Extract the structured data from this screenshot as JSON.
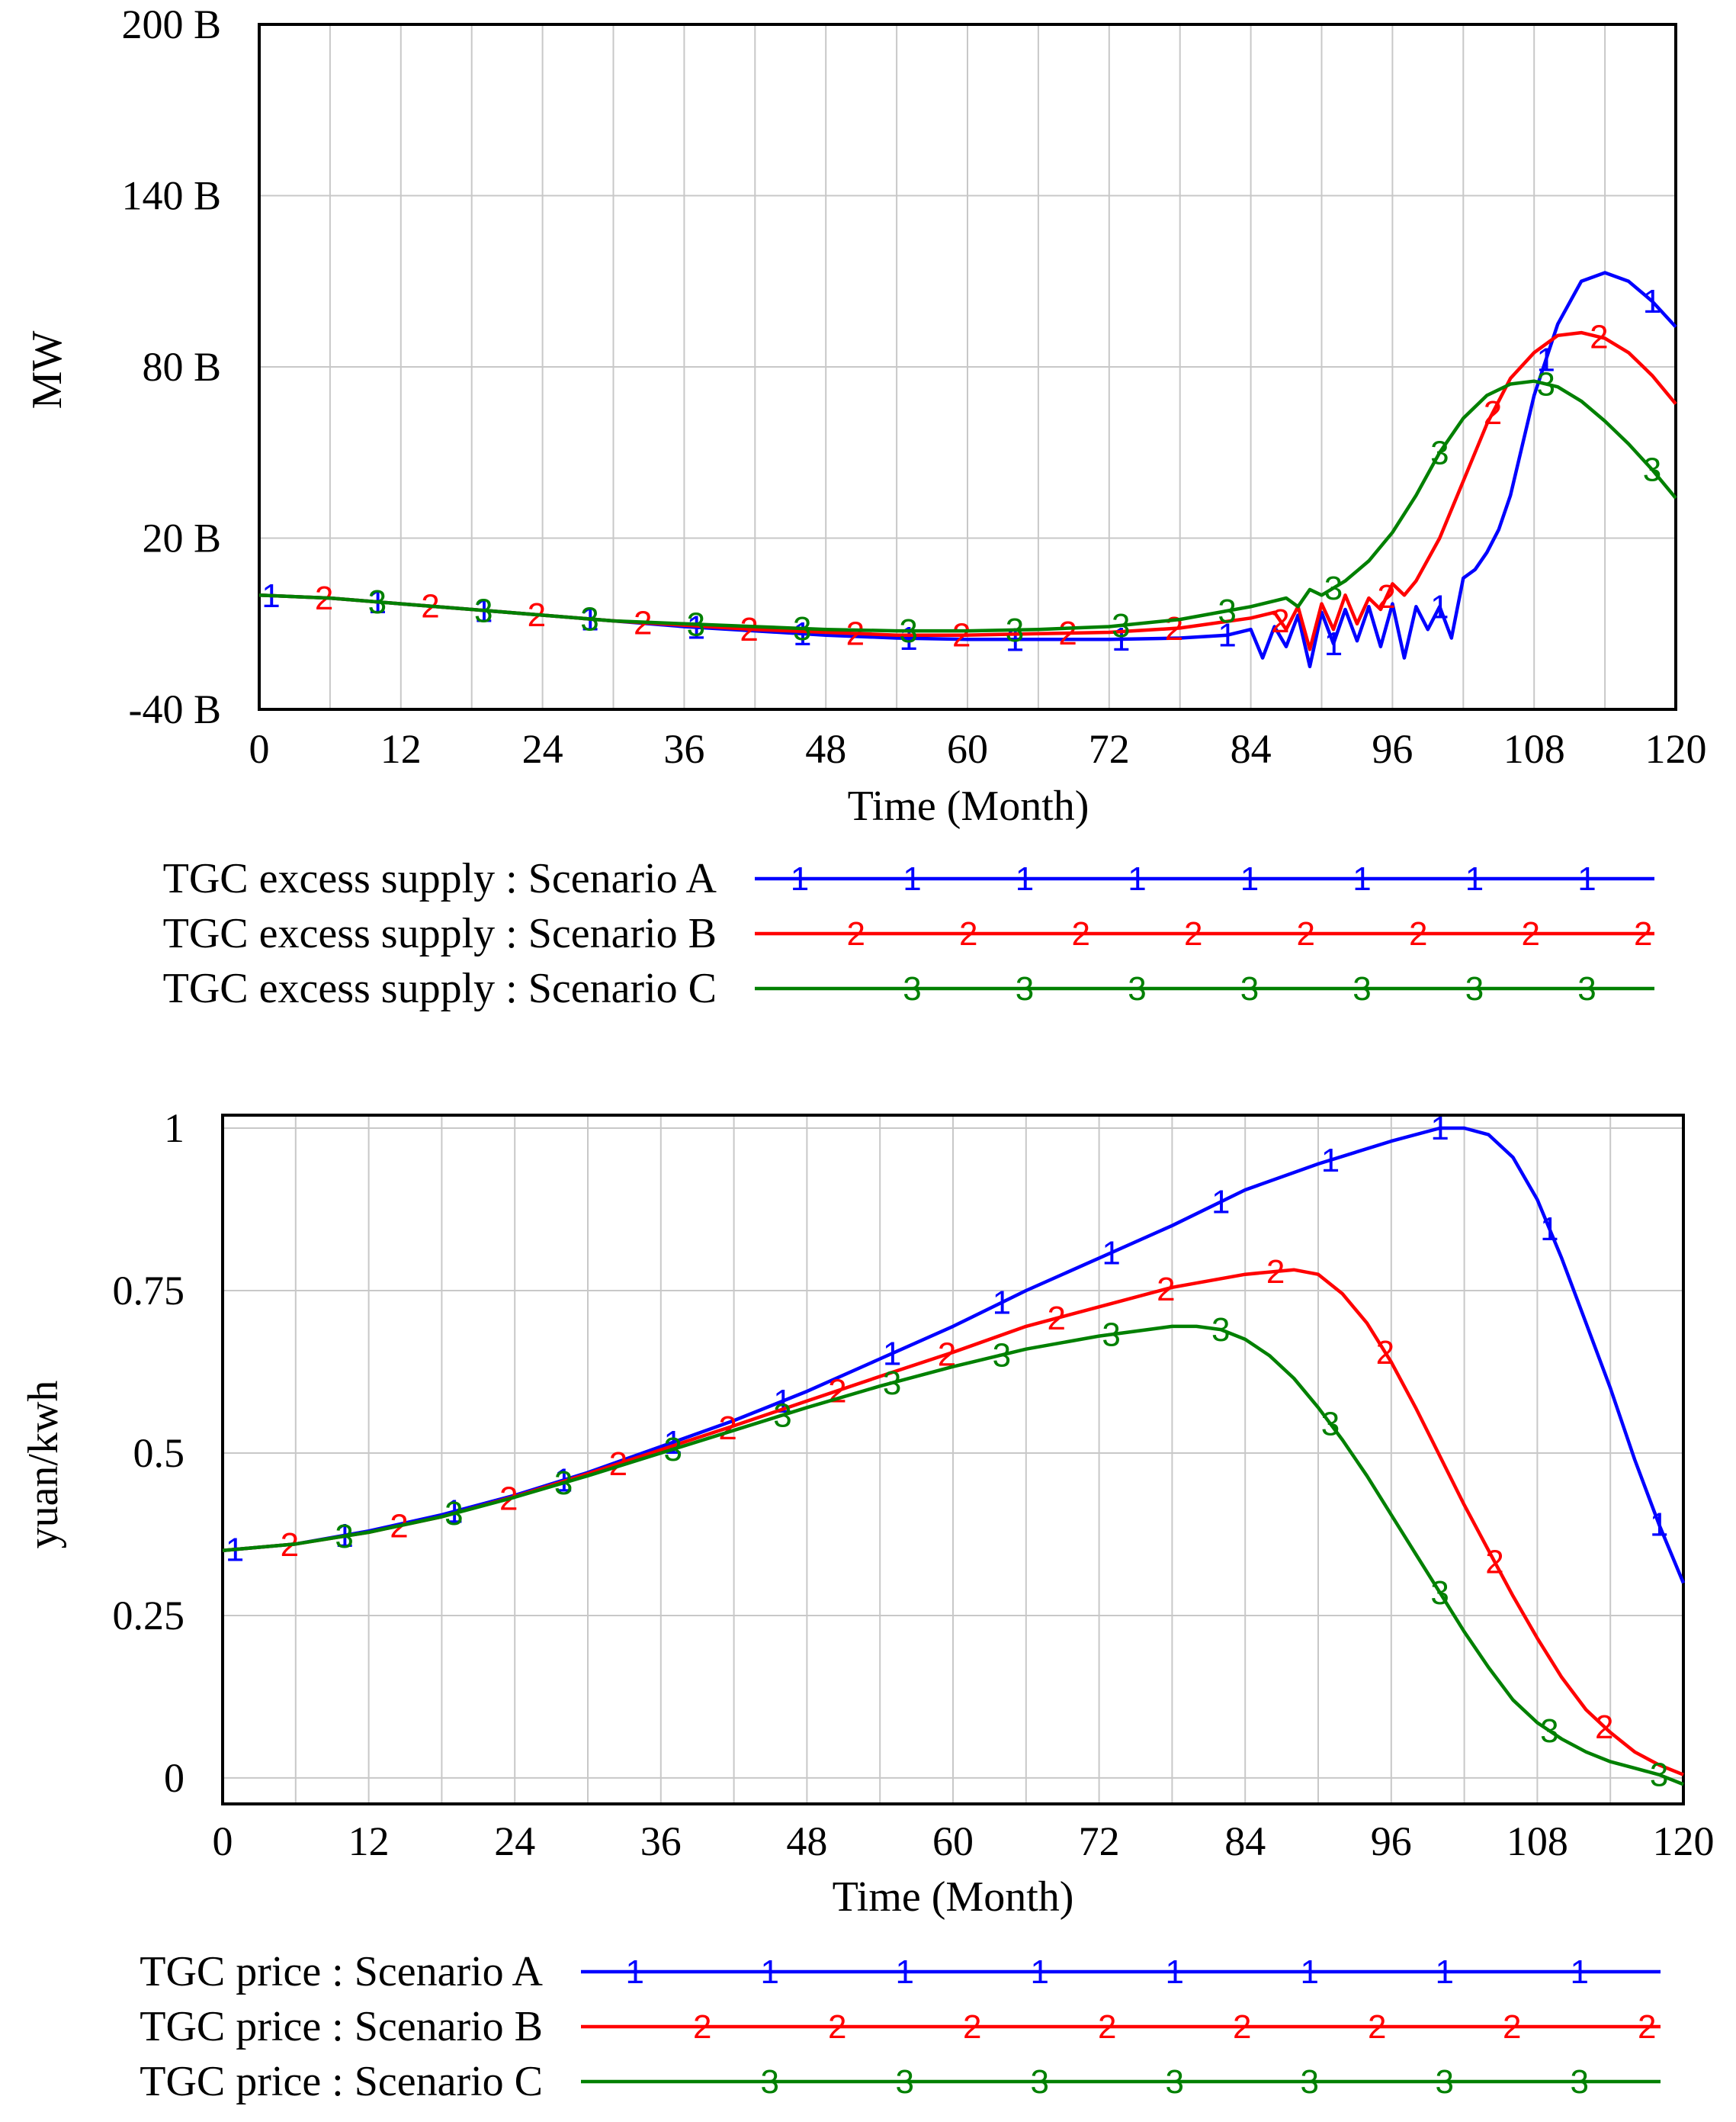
{
  "chart_data": [
    {
      "type": "line",
      "title": "",
      "xlabel": "Time (Month)",
      "ylabel": "MW",
      "xlim": [
        0,
        120
      ],
      "ylim": [
        -40,
        200
      ],
      "x_ticks": [
        "0",
        "12",
        "24",
        "36",
        "48",
        "60",
        "72",
        "84",
        "96",
        "108",
        "120"
      ],
      "y_ticks": [
        "200 B",
        "140 B",
        "80 B",
        "20 B",
        "-40 B"
      ],
      "y_tick_values": [
        200,
        140,
        80,
        20,
        -40
      ],
      "grid": true,
      "units": "billions (B)",
      "series": [
        {
          "name": "TGC excess supply : Scenario A",
          "marker": "1",
          "color": "#0000ff",
          "x": [
            0,
            6,
            12,
            18,
            24,
            30,
            36,
            42,
            48,
            54,
            60,
            66,
            72,
            78,
            82,
            84,
            85,
            86,
            87,
            88,
            89,
            90,
            91,
            92,
            93,
            94,
            95,
            96,
            97,
            98,
            99,
            100,
            101,
            102,
            103,
            104,
            105,
            106,
            108,
            110,
            112,
            114,
            116,
            118,
            120
          ],
          "y": [
            0,
            -1,
            -3,
            -5,
            -7,
            -9,
            -11,
            -12.5,
            -14,
            -15,
            -15.5,
            -15.5,
            -15.5,
            -15,
            -14,
            -12,
            -22,
            -11,
            -18,
            -7,
            -25,
            -6,
            -17,
            -5,
            -16,
            -4,
            -18,
            -3,
            -22,
            -4,
            -12,
            -4,
            -15,
            6,
            9,
            15,
            23,
            35,
            70,
            95,
            110,
            113,
            110,
            103,
            94
          ]
        },
        {
          "name": "TGC excess supply : Scenario B",
          "marker": "2",
          "color": "#ff0000",
          "x": [
            0,
            6,
            12,
            18,
            24,
            30,
            36,
            42,
            48,
            54,
            60,
            66,
            72,
            78,
            84,
            86,
            87,
            88,
            89,
            90,
            91,
            92,
            93,
            94,
            95,
            96,
            97,
            98,
            100,
            102,
            104,
            106,
            108,
            110,
            112,
            114,
            116,
            118,
            120
          ],
          "y": [
            0,
            -1,
            -3,
            -5,
            -7,
            -9,
            -10.5,
            -12,
            -13,
            -14,
            -14,
            -13.5,
            -13,
            -11.5,
            -8,
            -6,
            -12,
            -4,
            -19,
            -3,
            -12,
            0,
            -10,
            -1,
            -5,
            4,
            0,
            5,
            20,
            40,
            60,
            76,
            85,
            91,
            92,
            90,
            85,
            77,
            67
          ]
        },
        {
          "name": "TGC excess supply : Scenario C",
          "marker": "3",
          "color": "#008000",
          "x": [
            0,
            6,
            12,
            18,
            24,
            30,
            36,
            42,
            48,
            54,
            60,
            66,
            72,
            78,
            82,
            84,
            86,
            87,
            88,
            89,
            90,
            92,
            94,
            96,
            98,
            100,
            102,
            104,
            106,
            108,
            110,
            112,
            114,
            116,
            118,
            120
          ],
          "y": [
            0,
            -1,
            -3,
            -5,
            -7,
            -9,
            -10,
            -11,
            -12,
            -12.5,
            -12.5,
            -12,
            -11,
            -8.5,
            -5.5,
            -4,
            -2,
            -1,
            -4,
            2,
            0,
            5,
            12,
            22,
            35,
            50,
            62,
            70,
            74,
            75,
            73,
            68,
            61,
            53,
            44,
            34
          ]
        }
      ],
      "legend": "bottom"
    },
    {
      "type": "line",
      "title": "",
      "xlabel": "Time (Month)",
      "ylabel": "yuan/kwh",
      "xlim": [
        0,
        120
      ],
      "ylim": [
        -0.04,
        1.02
      ],
      "x_ticks": [
        "0",
        "12",
        "24",
        "36",
        "48",
        "60",
        "72",
        "84",
        "96",
        "108",
        "120"
      ],
      "y_ticks": [
        "1",
        "0.75",
        "0.5",
        "0.25",
        "0"
      ],
      "y_tick_values": [
        1,
        0.75,
        0.5,
        0.25,
        0
      ],
      "grid": true,
      "series": [
        {
          "name": "TGC price : Scenario A",
          "marker": "1",
          "color": "#0000ff",
          "x": [
            0,
            6,
            12,
            18,
            24,
            30,
            36,
            42,
            48,
            54,
            60,
            66,
            72,
            78,
            84,
            90,
            96,
            100,
            102,
            104,
            106,
            108,
            110,
            112,
            114,
            116,
            118,
            120
          ],
          "y": [
            0.35,
            0.36,
            0.38,
            0.405,
            0.435,
            0.47,
            0.51,
            0.55,
            0.595,
            0.645,
            0.695,
            0.75,
            0.8,
            0.85,
            0.905,
            0.945,
            0.98,
            1.0,
            1.0,
            0.99,
            0.955,
            0.89,
            0.8,
            0.7,
            0.6,
            0.49,
            0.39,
            0.3
          ]
        },
        {
          "name": "TGC price : Scenario B",
          "marker": "2",
          "color": "#ff0000",
          "x": [
            0,
            6,
            12,
            18,
            24,
            30,
            36,
            42,
            48,
            54,
            60,
            66,
            72,
            78,
            84,
            88,
            90,
            92,
            94,
            96,
            98,
            100,
            102,
            104,
            106,
            108,
            110,
            112,
            114,
            116,
            118,
            120
          ],
          "y": [
            0.35,
            0.36,
            0.378,
            0.402,
            0.433,
            0.468,
            0.505,
            0.542,
            0.58,
            0.618,
            0.655,
            0.695,
            0.725,
            0.755,
            0.775,
            0.782,
            0.775,
            0.745,
            0.7,
            0.64,
            0.57,
            0.495,
            0.42,
            0.35,
            0.28,
            0.215,
            0.155,
            0.105,
            0.07,
            0.04,
            0.02,
            0.005
          ]
        },
        {
          "name": "TGC price : Scenario C",
          "marker": "3",
          "color": "#008000",
          "x": [
            0,
            6,
            12,
            18,
            24,
            30,
            36,
            42,
            48,
            54,
            60,
            66,
            72,
            78,
            80,
            82,
            84,
            86,
            88,
            90,
            92,
            94,
            96,
            98,
            100,
            102,
            104,
            106,
            108,
            110,
            112,
            114,
            116,
            118,
            120
          ],
          "y": [
            0.35,
            0.36,
            0.378,
            0.402,
            0.432,
            0.465,
            0.5,
            0.535,
            0.57,
            0.603,
            0.633,
            0.66,
            0.68,
            0.695,
            0.695,
            0.69,
            0.675,
            0.65,
            0.615,
            0.57,
            0.52,
            0.465,
            0.405,
            0.345,
            0.285,
            0.225,
            0.17,
            0.12,
            0.085,
            0.06,
            0.04,
            0.025,
            0.015,
            0.005,
            -0.01
          ]
        }
      ],
      "legend": "bottom"
    }
  ]
}
